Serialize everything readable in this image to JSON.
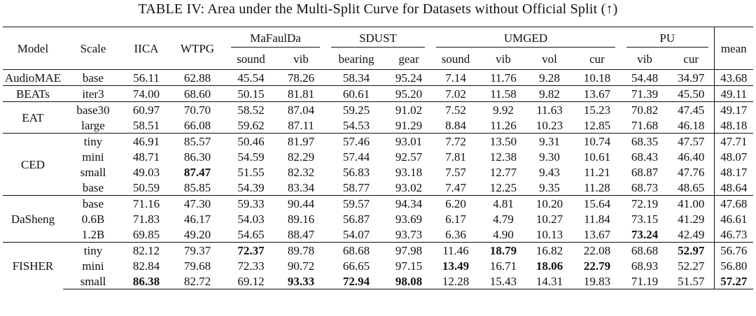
{
  "caption": "TABLE IV: Area under the Multi-Split Curve for Datasets without Official Split (↑)",
  "header": {
    "model": "Model",
    "scale": "Scale",
    "iica": "IICA",
    "wtpg": "WTPG",
    "mafaulda": "MaFaulDa",
    "sdust": "SDUST",
    "umged": "UMGED",
    "pu": "PU",
    "mean": "mean",
    "sub": [
      "sound",
      "vib",
      "bearing",
      "gear",
      "sound",
      "vib",
      "vol",
      "cur",
      "vib",
      "cur"
    ]
  },
  "groups": [
    {
      "model": "AudioMAE",
      "rows": [
        {
          "scale": "base",
          "values": [
            "56.11",
            "62.88",
            "45.54",
            "78.26",
            "58.34",
            "95.24",
            "7.14",
            "11.76",
            "9.28",
            "10.18",
            "54.48",
            "34.97",
            "43.68"
          ],
          "bold": []
        }
      ]
    },
    {
      "model": "BEATs",
      "rows": [
        {
          "scale": "iter3",
          "values": [
            "74.00",
            "68.60",
            "50.15",
            "81.81",
            "60.61",
            "95.20",
            "7.02",
            "11.58",
            "9.82",
            "13.67",
            "71.39",
            "45.50",
            "49.11"
          ],
          "bold": []
        }
      ]
    },
    {
      "model": "EAT",
      "rows": [
        {
          "scale": "base30",
          "values": [
            "60.97",
            "70.70",
            "58.52",
            "87.04",
            "59.25",
            "91.02",
            "7.52",
            "9.92",
            "11.63",
            "15.23",
            "70.82",
            "47.45",
            "49.17"
          ],
          "bold": []
        },
        {
          "scale": "large",
          "values": [
            "58.51",
            "66.08",
            "59.62",
            "87.11",
            "54.53",
            "91.29",
            "8.84",
            "11.26",
            "10.23",
            "12.85",
            "71.68",
            "46.18",
            "48.18"
          ],
          "bold": []
        }
      ]
    },
    {
      "model": "CED",
      "rows": [
        {
          "scale": "tiny",
          "values": [
            "46.91",
            "85.57",
            "50.46",
            "81.97",
            "57.46",
            "93.01",
            "7.72",
            "13.50",
            "9.31",
            "10.74",
            "68.35",
            "47.57",
            "47.71"
          ],
          "bold": []
        },
        {
          "scale": "mini",
          "values": [
            "48.71",
            "86.30",
            "54.59",
            "82.29",
            "57.44",
            "92.57",
            "7.81",
            "12.38",
            "9.30",
            "10.61",
            "68.43",
            "46.40",
            "48.07"
          ],
          "bold": []
        },
        {
          "scale": "small",
          "values": [
            "49.03",
            "87.47",
            "51.55",
            "82.32",
            "56.83",
            "93.18",
            "7.57",
            "12.77",
            "9.43",
            "11.21",
            "68.87",
            "47.76",
            "48.17"
          ],
          "bold": [
            1
          ]
        },
        {
          "scale": "base",
          "values": [
            "50.59",
            "85.85",
            "54.39",
            "83.34",
            "58.77",
            "93.02",
            "7.47",
            "12.25",
            "9.35",
            "11.28",
            "68.73",
            "48.65",
            "48.64"
          ],
          "bold": []
        }
      ]
    },
    {
      "model": "DaSheng",
      "rows": [
        {
          "scale": "base",
          "values": [
            "71.16",
            "47.30",
            "59.33",
            "90.44",
            "59.57",
            "94.34",
            "6.20",
            "4.81",
            "10.20",
            "15.64",
            "72.19",
            "41.00",
            "47.68"
          ],
          "bold": []
        },
        {
          "scale": "0.6B",
          "values": [
            "71.83",
            "46.17",
            "54.03",
            "89.16",
            "56.87",
            "93.69",
            "6.17",
            "4.79",
            "10.27",
            "11.84",
            "73.15",
            "41.29",
            "46.61"
          ],
          "bold": []
        },
        {
          "scale": "1.2B",
          "values": [
            "69.85",
            "49.20",
            "54.65",
            "88.47",
            "54.07",
            "93.73",
            "6.36",
            "4.90",
            "10.13",
            "13.67",
            "73.24",
            "42.49",
            "46.73"
          ],
          "bold": [
            10
          ]
        }
      ]
    },
    {
      "model": "FISHER",
      "rows": [
        {
          "scale": "tiny",
          "values": [
            "82.12",
            "79.37",
            "72.37",
            "89.78",
            "68.68",
            "97.98",
            "11.46",
            "18.79",
            "16.82",
            "22.08",
            "68.68",
            "52.97",
            "56.76"
          ],
          "bold": [
            2,
            7,
            11
          ]
        },
        {
          "scale": "mini",
          "values": [
            "82.84",
            "79.68",
            "72.33",
            "90.72",
            "66.65",
            "97.15",
            "13.49",
            "16.71",
            "18.06",
            "22.79",
            "68.93",
            "52.27",
            "56.80"
          ],
          "bold": [
            6,
            8,
            9
          ]
        },
        {
          "scale": "small",
          "values": [
            "86.38",
            "82.72",
            "69.12",
            "93.33",
            "72.94",
            "98.08",
            "12.28",
            "15.43",
            "14.31",
            "19.83",
            "71.19",
            "51.57",
            "57.27"
          ],
          "bold": [
            0,
            3,
            4,
            5,
            12
          ]
        }
      ]
    }
  ]
}
